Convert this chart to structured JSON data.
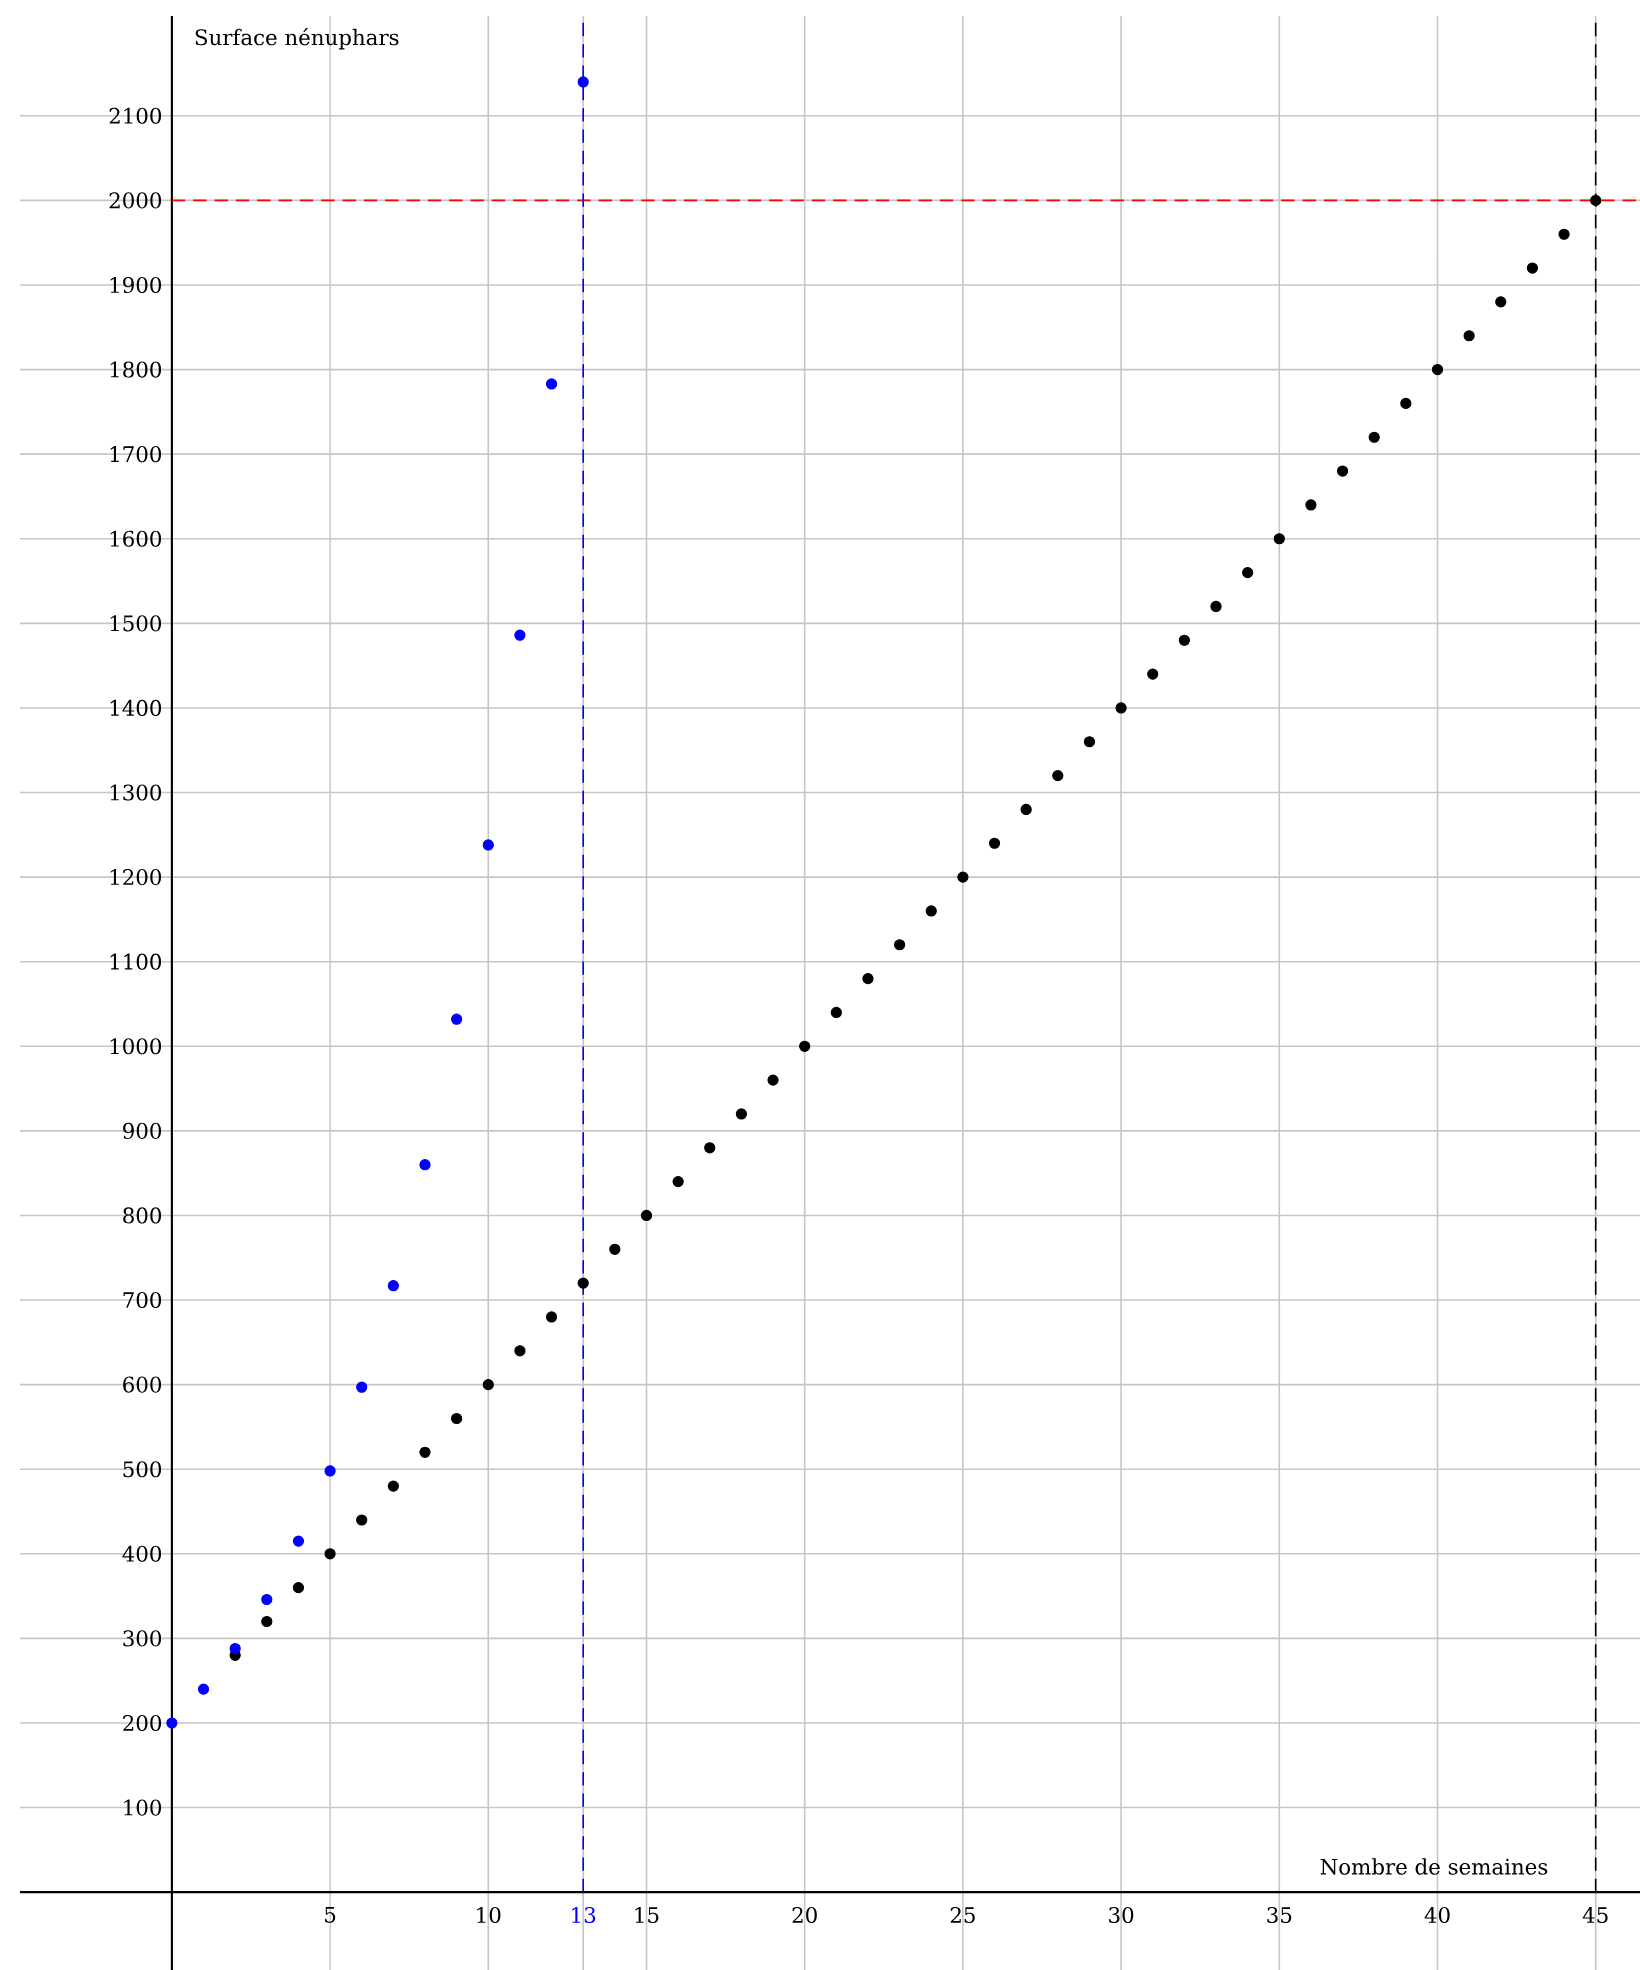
{
  "chart_data": {
    "type": "scatter",
    "xlabel": "Nombre de semaines",
    "ylabel": "Surface nénuphars",
    "xlim": [
      -4.8,
      46.4
    ],
    "ylim": [
      -92,
      2218
    ],
    "xticks": [
      5,
      10,
      {
        "value": 13,
        "label": "13"
      },
      15,
      20,
      25,
      30,
      35,
      40,
      45
    ],
    "yticks": [
      100,
      200,
      300,
      400,
      500,
      600,
      700,
      800,
      900,
      1000,
      1100,
      1200,
      1300,
      1400,
      1500,
      1600,
      1700,
      1800,
      1900,
      2000,
      2100
    ],
    "grid": true,
    "series": [
      {
        "color": "#000000",
        "x": [
          2,
          3,
          4,
          5,
          6,
          7,
          8,
          9,
          10,
          11,
          12,
          13,
          14,
          15,
          16,
          17,
          18,
          19,
          20,
          21,
          22,
          23,
          24,
          25,
          26,
          27,
          28,
          29,
          30,
          31,
          32,
          33,
          34,
          35,
          36,
          37,
          38,
          39,
          40,
          41,
          42,
          43,
          44,
          45
        ],
        "values": [
          280,
          320,
          360,
          400,
          440,
          480,
          520,
          560,
          600,
          640,
          680,
          720,
          760,
          800,
          840,
          880,
          920,
          960,
          1000,
          1040,
          1080,
          1120,
          1160,
          1200,
          1240,
          1280,
          1320,
          1360,
          1400,
          1440,
          1480,
          1520,
          1560,
          1600,
          1640,
          1680,
          1720,
          1760,
          1800,
          1840,
          1880,
          1920,
          1960,
          2000
        ]
      },
      {
        "color": "#0000ff",
        "x": [
          0,
          1,
          2,
          3,
          4,
          5,
          6,
          7,
          8,
          9,
          10,
          11,
          12,
          13
        ],
        "values": [
          200,
          240,
          288,
          346,
          415,
          498,
          597,
          717,
          860,
          1032,
          1238,
          1486,
          1783,
          2140
        ]
      }
    ],
    "ref_lines": [
      {
        "axis": "y",
        "value": 2000,
        "color": "#ff0000",
        "line_style": "dashed"
      },
      {
        "axis": "x",
        "value": 13,
        "color": "#0000ff",
        "line_style": "dashed"
      },
      {
        "axis": "x",
        "value": 45,
        "color": "#000000",
        "line_style": "dashed"
      }
    ]
  }
}
